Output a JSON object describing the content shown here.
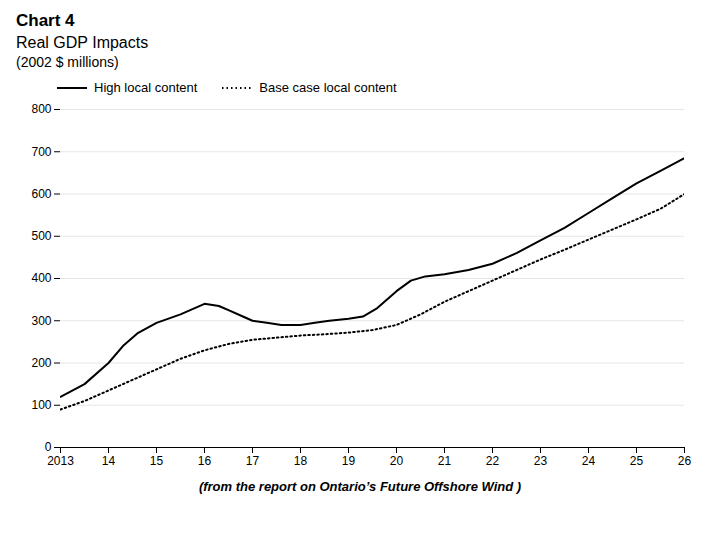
{
  "chart_data": {
    "type": "line",
    "title": "Chart 4",
    "subtitle": [
      "Real GDP Impacts",
      "(2002 $ millions)"
    ],
    "caption": "(from the report on Ontario’s Future Offshore Wind )",
    "series": [
      {
        "name": "High local content",
        "color": "#000000",
        "line_style": "solid",
        "x": [
          2013,
          2013.5,
          2014,
          2014.3,
          2014.6,
          2015,
          2015.5,
          2016,
          2016.3,
          2016.5,
          2016.8,
          2017,
          2017.3,
          2017.6,
          2018,
          2018.3,
          2018.6,
          2019,
          2019.3,
          2019.6,
          2020,
          2020.3,
          2020.6,
          2021,
          2021.5,
          2022,
          2022.5,
          2023,
          2023.5,
          2024,
          2024.5,
          2025,
          2025.5,
          2026
        ],
        "values": [
          120,
          150,
          200,
          240,
          270,
          295,
          315,
          340,
          335,
          325,
          310,
          300,
          295,
          290,
          290,
          295,
          300,
          305,
          310,
          330,
          370,
          395,
          405,
          410,
          420,
          435,
          460,
          490,
          520,
          555,
          590,
          625,
          655,
          685
        ]
      },
      {
        "name": "Base case local content",
        "color": "#000000",
        "line_style": "dotted",
        "x": [
          2013,
          2013.5,
          2014,
          2014.5,
          2015,
          2015.5,
          2016,
          2016.5,
          2017,
          2017.5,
          2018,
          2018.5,
          2019,
          2019.5,
          2020,
          2020.5,
          2021,
          2021.5,
          2022,
          2022.5,
          2023,
          2023.5,
          2024,
          2024.5,
          2025,
          2025.5,
          2026
        ],
        "values": [
          90,
          110,
          135,
          160,
          185,
          210,
          230,
          245,
          255,
          260,
          265,
          268,
          272,
          278,
          290,
          315,
          345,
          370,
          395,
          420,
          445,
          468,
          492,
          516,
          540,
          565,
          600
        ]
      }
    ],
    "xlim": [
      2013,
      2026
    ],
    "xticks": [
      2013,
      {
        "value": 2014,
        "label": "14"
      },
      {
        "value": 2015,
        "label": "15"
      },
      {
        "value": 2016,
        "label": "16"
      },
      {
        "value": 2017,
        "label": "17"
      },
      {
        "value": 2018,
        "label": "18"
      },
      {
        "value": 2019,
        "label": "19"
      },
      {
        "value": 2020,
        "label": "20"
      },
      {
        "value": 2021,
        "label": "21"
      },
      {
        "value": 2022,
        "label": "22"
      },
      {
        "value": 2023,
        "label": "23"
      },
      {
        "value": 2024,
        "label": "24"
      },
      {
        "value": 2025,
        "label": "25"
      },
      {
        "value": 2026,
        "label": "26"
      }
    ],
    "ylim": [
      0,
      800
    ],
    "yticks": [
      0,
      100,
      200,
      300,
      400,
      500,
      600,
      700,
      800
    ],
    "grid": "y",
    "legend": "upper left"
  }
}
